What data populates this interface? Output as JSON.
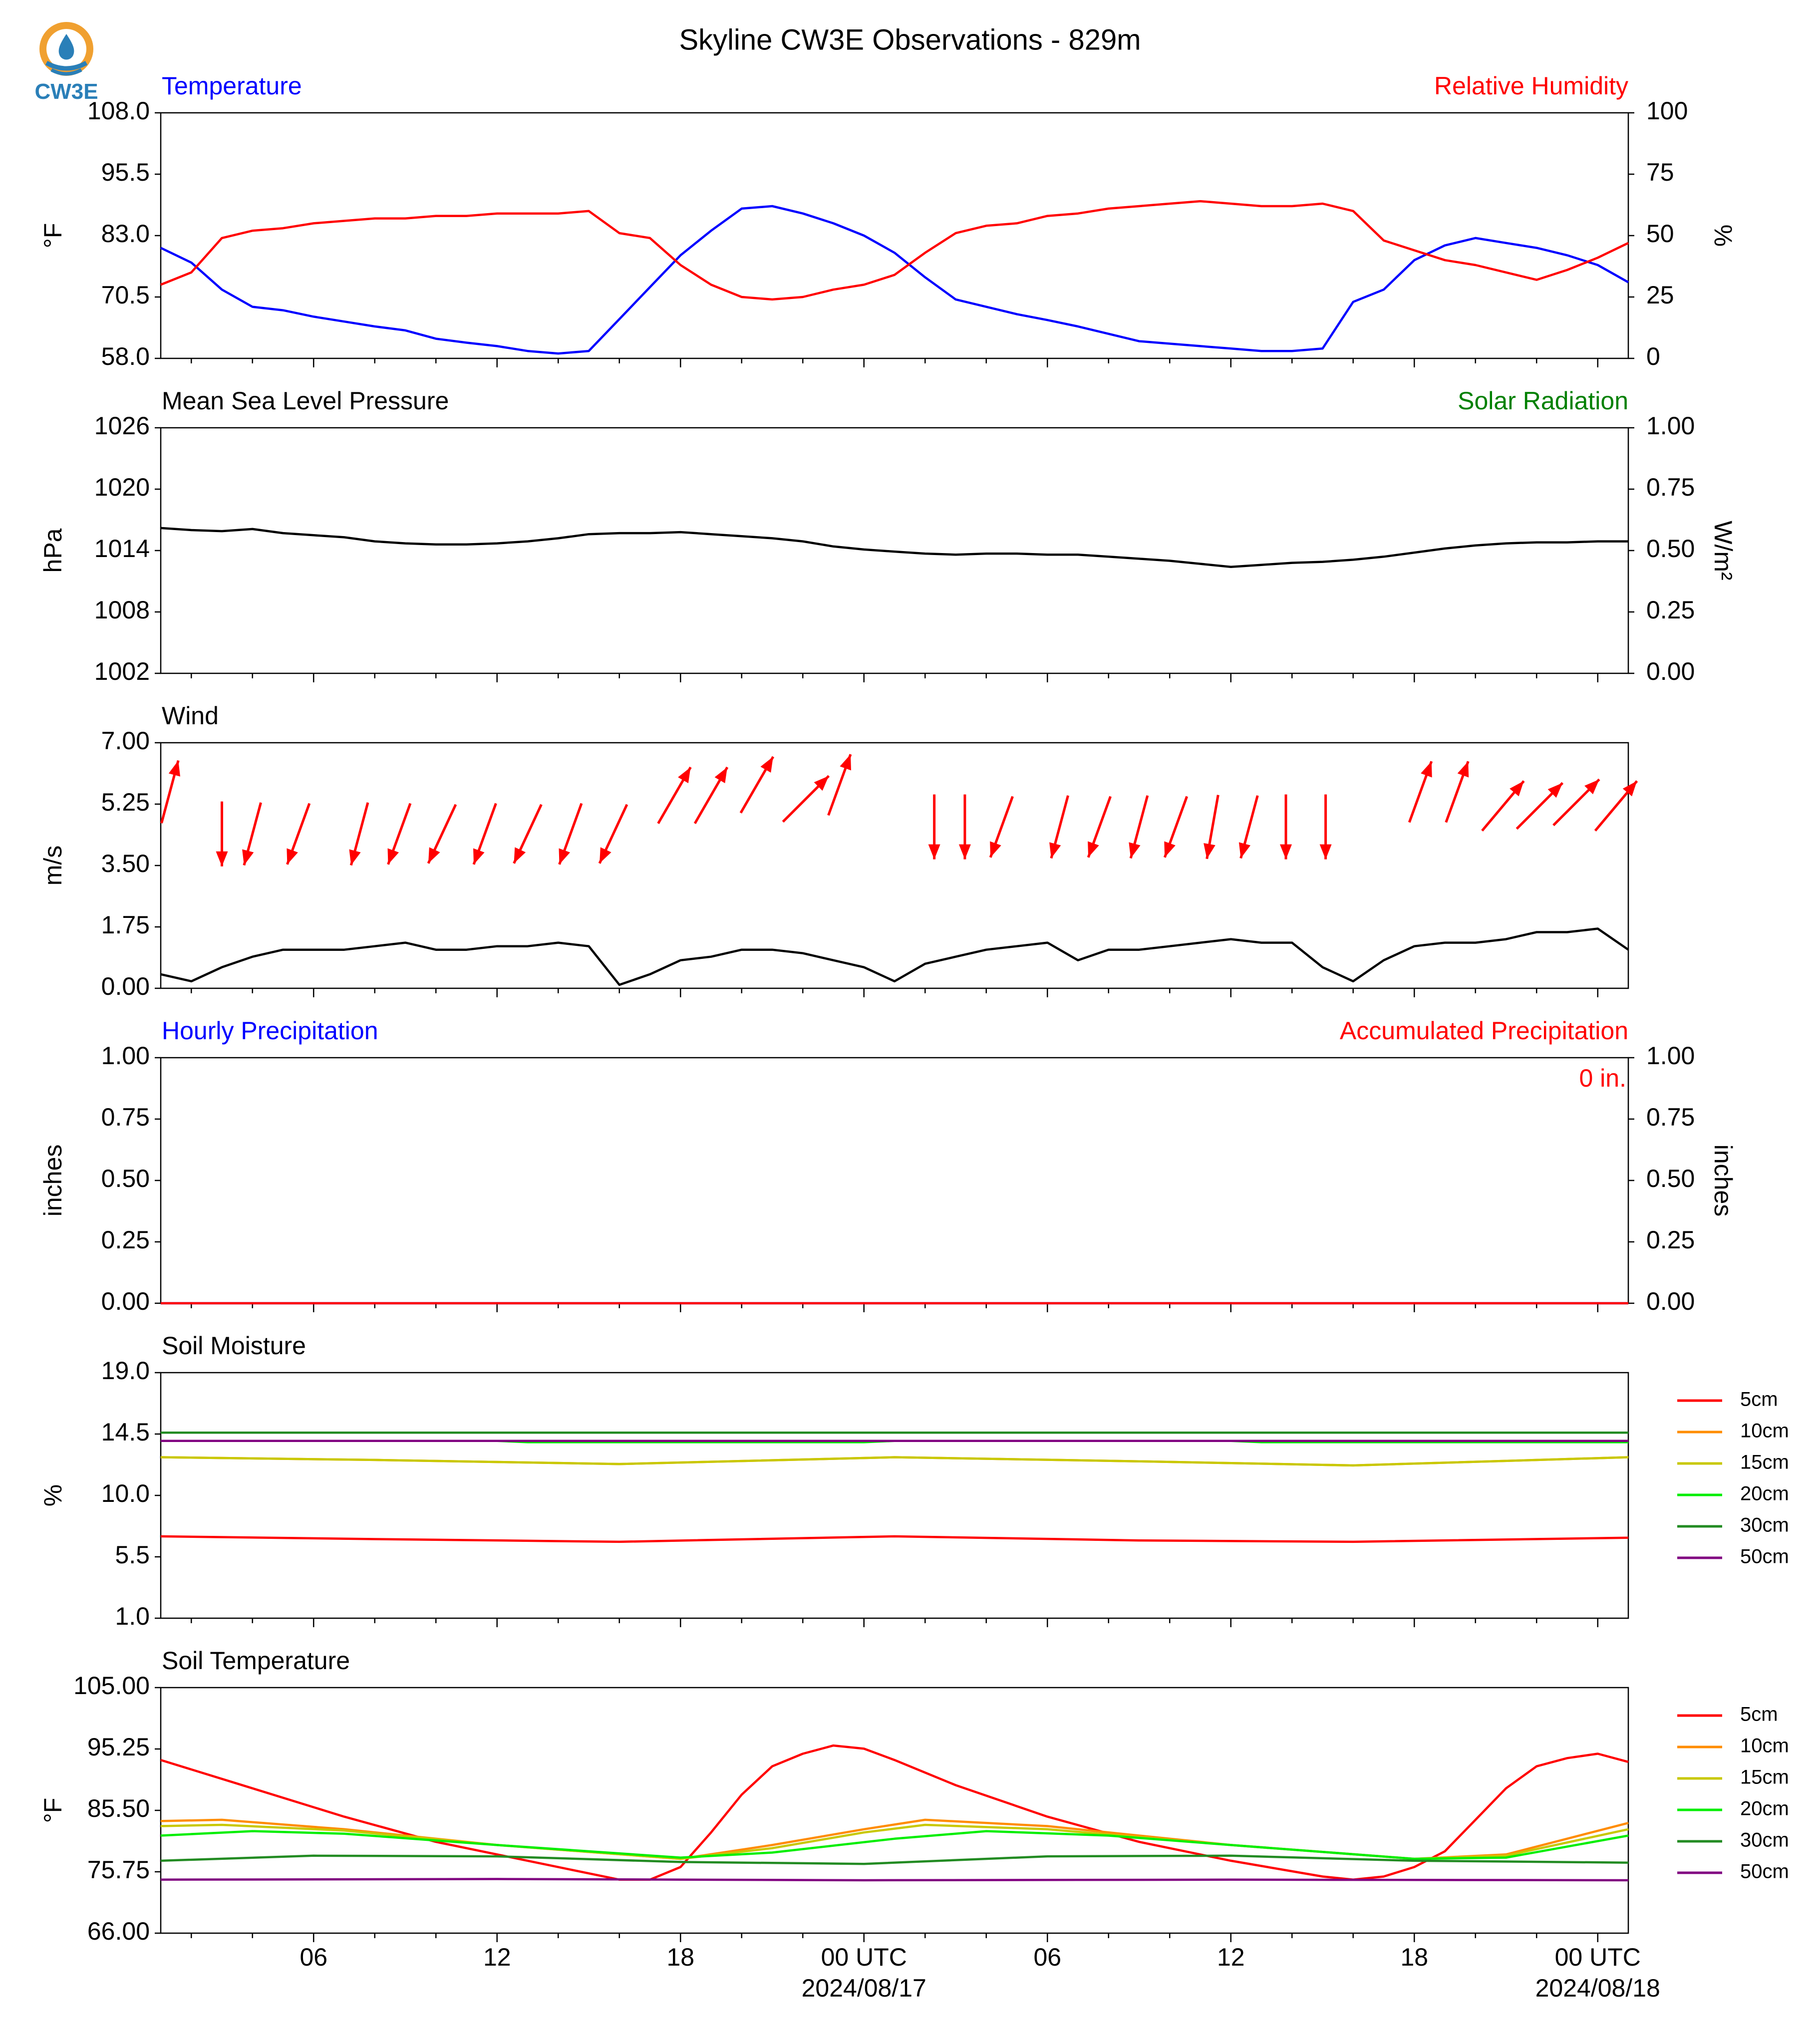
{
  "title": "Skyline CW3E Observations - 829m",
  "logo": {
    "text": "CW3E",
    "icon": "cw3e-logo-icon",
    "ring_color": "#f0a030",
    "drop_color": "#2a7fb8"
  },
  "colors": {
    "blue": "#0000ff",
    "red": "#ff0000",
    "green": "#008000",
    "black": "#000000"
  },
  "x_axis": {
    "tick_labels": [
      "06",
      "12",
      "18",
      "00 UTC",
      "06",
      "12",
      "18",
      "00 UTC"
    ],
    "tick_hours": [
      6,
      12,
      18,
      24,
      30,
      36,
      42,
      48
    ],
    "date_labels": [
      "2024/08/17",
      "2024/08/18"
    ],
    "range_hours": [
      1,
      49
    ]
  },
  "legend": {
    "depths": [
      "5cm",
      "10cm",
      "15cm",
      "20cm",
      "30cm",
      "50cm"
    ],
    "colors": [
      "#ff0000",
      "#ff8c00",
      "#c8c800",
      "#00ee00",
      "#228b22",
      "#800080"
    ]
  },
  "panels": {
    "temperature": {
      "left_title": "Temperature",
      "right_title": "Relative Humidity",
      "ylabel_left": "°F",
      "ylabel_right": "%",
      "left_ticks": [
        "108.0",
        "95.5",
        "83.0",
        "70.5",
        "58.0"
      ],
      "right_ticks": [
        "100",
        "75",
        "50",
        "25",
        "0"
      ]
    },
    "pressure": {
      "left_title": "Mean Sea Level Pressure",
      "right_title": "Solar Radiation",
      "ylabel_left": "hPa",
      "ylabel_right": "W/m²",
      "left_ticks": [
        "1026",
        "1020",
        "1014",
        "1008",
        "1002"
      ],
      "right_ticks": [
        "1.00",
        "0.75",
        "0.50",
        "0.25",
        "0.00"
      ]
    },
    "wind": {
      "left_title": "Wind",
      "ylabel_left": "m/s",
      "left_ticks": [
        "7.00",
        "5.25",
        "3.50",
        "1.75",
        "0.00"
      ]
    },
    "precip": {
      "left_title": "Hourly Precipitation",
      "right_title": "Accumulated Precipitation",
      "ylabel_left": "inches",
      "ylabel_right": "inches",
      "left_ticks": [
        "1.00",
        "0.75",
        "0.50",
        "0.25",
        "0.00"
      ],
      "right_ticks": [
        "1.00",
        "0.75",
        "0.50",
        "0.25",
        "0.00"
      ],
      "accum_label": "0 in."
    },
    "soil_moisture": {
      "left_title": "Soil Moisture",
      "ylabel_left": "%",
      "left_ticks": [
        "19.0",
        "14.5",
        "10.0",
        "5.5",
        "1.0"
      ]
    },
    "soil_temp": {
      "left_title": "Soil Temperature",
      "ylabel_left": "°F",
      "left_ticks": [
        "105.00",
        "95.25",
        "85.50",
        "75.75",
        "66.00"
      ]
    }
  },
  "chart_data": [
    {
      "type": "line",
      "title": "Temperature",
      "ylabel": "°F",
      "ylim": [
        58,
        108
      ],
      "x_unit": "hours since 2024-08-16 00 UTC",
      "series": [
        {
          "name": "Temperature",
          "color": "#0000ff",
          "axis": "left",
          "x": [
            1,
            2,
            3,
            4,
            5,
            6,
            7,
            8,
            9,
            10,
            11,
            12,
            13,
            14,
            15,
            16,
            17,
            18,
            19,
            20,
            21,
            22,
            23,
            24,
            25,
            26,
            27,
            28,
            29,
            30,
            31,
            32,
            33,
            34,
            35,
            36,
            37,
            38,
            39,
            40,
            41,
            42,
            43,
            44,
            45,
            46,
            47,
            48,
            49
          ],
          "y": [
            80.5,
            77.5,
            72.0,
            68.5,
            67.8,
            66.5,
            65.5,
            64.5,
            63.7,
            62.0,
            61.2,
            60.5,
            59.5,
            59.0,
            59.5,
            66.0,
            72.5,
            79.0,
            84.0,
            88.5,
            89.0,
            87.5,
            85.5,
            83.0,
            79.5,
            74.5,
            70.0,
            68.5,
            67.0,
            65.8,
            64.5,
            63.0,
            61.5,
            61.0,
            60.5,
            60.0,
            59.5,
            59.5,
            60.0,
            69.5,
            72.0,
            78.0,
            81.0,
            82.5,
            81.5,
            80.5,
            79.0,
            77.0,
            73.5
          ]
        },
        {
          "name": "Relative Humidity",
          "color": "#ff0000",
          "axis": "right",
          "x": [
            1,
            2,
            3,
            4,
            5,
            6,
            7,
            8,
            9,
            10,
            11,
            12,
            13,
            14,
            15,
            16,
            17,
            18,
            19,
            20,
            21,
            22,
            23,
            24,
            25,
            26,
            27,
            28,
            29,
            30,
            31,
            32,
            33,
            34,
            35,
            36,
            37,
            38,
            39,
            40,
            41,
            42,
            43,
            44,
            45,
            46,
            47,
            48,
            49
          ],
          "y": [
            30,
            35,
            49,
            52,
            53,
            55,
            56,
            57,
            57,
            58,
            58,
            59,
            59,
            59,
            60,
            51,
            49,
            38,
            30,
            25,
            24,
            25,
            28,
            30,
            34,
            43,
            51,
            54,
            55,
            58,
            59,
            61,
            62,
            63,
            64,
            63,
            62,
            62,
            63,
            60,
            48,
            44,
            40,
            38,
            35,
            32,
            36,
            41,
            47
          ]
        }
      ]
    },
    {
      "type": "line",
      "title": "Mean Sea Level Pressure",
      "ylabel": "hPa",
      "ylim": [
        1002,
        1026
      ],
      "x_unit": "hours since 2024-08-16 00 UTC",
      "series": [
        {
          "name": "Mean Sea Level Pressure",
          "color": "#000000",
          "x": [
            1,
            2,
            3,
            4,
            5,
            6,
            7,
            8,
            9,
            10,
            11,
            12,
            13,
            14,
            15,
            16,
            17,
            18,
            19,
            20,
            21,
            22,
            23,
            24,
            25,
            26,
            27,
            28,
            29,
            30,
            31,
            32,
            33,
            34,
            35,
            36,
            37,
            38,
            39,
            40,
            41,
            42,
            43,
            44,
            45,
            46,
            47,
            48,
            49
          ],
          "y": [
            1016.2,
            1016.0,
            1015.9,
            1016.1,
            1015.7,
            1015.5,
            1015.3,
            1014.9,
            1014.7,
            1014.6,
            1014.6,
            1014.7,
            1014.9,
            1015.2,
            1015.6,
            1015.7,
            1015.7,
            1015.8,
            1015.6,
            1015.4,
            1015.2,
            1014.9,
            1014.4,
            1014.1,
            1013.9,
            1013.7,
            1013.6,
            1013.7,
            1013.7,
            1013.6,
            1013.6,
            1013.4,
            1013.2,
            1013.0,
            1012.7,
            1012.4,
            1012.6,
            1012.8,
            1012.9,
            1013.1,
            1013.4,
            1013.8,
            1014.2,
            1014.5,
            1014.7,
            1014.8,
            1014.8,
            1014.9,
            1014.9
          ]
        }
      ]
    },
    {
      "type": "line",
      "title": "Wind",
      "ylabel": "m/s",
      "ylim": [
        0,
        7
      ],
      "x_unit": "hours since 2024-08-16 00 UTC",
      "series": [
        {
          "name": "Wind speed",
          "color": "#000000",
          "x": [
            1,
            2,
            3,
            4,
            5,
            6,
            7,
            8,
            9,
            10,
            11,
            12,
            13,
            14,
            15,
            16,
            17,
            18,
            19,
            20,
            21,
            22,
            23,
            24,
            25,
            26,
            27,
            28,
            29,
            30,
            31,
            32,
            33,
            34,
            35,
            36,
            37,
            38,
            39,
            40,
            41,
            42,
            43,
            44,
            45,
            46,
            47,
            48,
            49
          ],
          "y": [
            0.4,
            0.2,
            0.6,
            0.9,
            1.1,
            1.1,
            1.1,
            1.2,
            1.3,
            1.1,
            1.1,
            1.2,
            1.2,
            1.3,
            1.2,
            0.1,
            0.4,
            0.8,
            0.9,
            1.1,
            1.1,
            1.0,
            0.8,
            0.6,
            0.2,
            0.7,
            0.9,
            1.1,
            1.2,
            1.3,
            0.8,
            1.1,
            1.1,
            1.2,
            1.3,
            1.4,
            1.3,
            1.3,
            0.6,
            0.2,
            0.8,
            1.2,
            1.3,
            1.3,
            1.4,
            1.6,
            1.6,
            1.7,
            1.1
          ]
        },
        {
          "name": "Wind barbs (direction the arrow points, degrees compass)",
          "color": "#ff0000",
          "x": [
            1.3,
            3,
            4,
            5.5,
            7.5,
            8.8,
            10.2,
            11.6,
            13,
            14.4,
            15.8,
            17.8,
            19,
            20.5,
            22.1,
            23.2,
            26.3,
            27.3,
            28.5,
            30.4,
            31.7,
            33.0,
            34.2,
            35.4,
            36.6,
            37.8,
            39.1,
            42.2,
            43.4,
            44.9,
            46.1,
            47.3,
            48.6
          ],
          "y": [
            5.6,
            4.4,
            4.4,
            4.4,
            4.4,
            4.4,
            4.4,
            4.4,
            4.4,
            4.4,
            4.4,
            5.5,
            5.5,
            5.8,
            5.4,
            5.8,
            4.6,
            4.6,
            4.6,
            4.6,
            4.6,
            4.6,
            4.6,
            4.6,
            4.6,
            4.6,
            4.6,
            5.6,
            5.6,
            5.2,
            5.2,
            5.3,
            5.2
          ],
          "direction_deg": [
            15,
            180,
            195,
            200,
            195,
            200,
            205,
            200,
            205,
            200,
            205,
            30,
            30,
            30,
            45,
            20,
            180,
            180,
            200,
            195,
            200,
            195,
            200,
            190,
            195,
            180,
            180,
            20,
            20,
            40,
            45,
            45,
            40
          ]
        }
      ]
    },
    {
      "type": "line",
      "title": "Hourly Precipitation",
      "ylabel": "inches",
      "ylim": [
        0,
        1
      ],
      "x_unit": "hours since 2024-08-16 00 UTC",
      "series": [
        {
          "name": "Hourly Precipitation",
          "color": "#0000ff",
          "x": [
            1,
            49
          ],
          "y": [
            0,
            0
          ]
        },
        {
          "name": "Accumulated Precipitation",
          "color": "#ff0000",
          "x": [
            1,
            49
          ],
          "y": [
            0,
            0
          ]
        }
      ]
    },
    {
      "type": "line",
      "title": "Soil Moisture",
      "ylabel": "%",
      "ylim": [
        1,
        19
      ],
      "x_unit": "hours since 2024-08-16 00 UTC",
      "series": [
        {
          "name": "5cm",
          "color": "#ff0000",
          "x": [
            1,
            8,
            16,
            25,
            33,
            40,
            49
          ],
          "y": [
            7.0,
            6.8,
            6.6,
            7.0,
            6.7,
            6.6,
            6.9
          ]
        },
        {
          "name": "10cm",
          "color": "#ff8c00",
          "x": [
            1,
            8,
            16,
            25,
            33,
            40,
            49
          ],
          "y": [
            12.8,
            12.6,
            12.3,
            12.8,
            12.5,
            12.2,
            12.8
          ]
        },
        {
          "name": "15cm",
          "color": "#c8c800",
          "x": [
            1,
            8,
            16,
            25,
            33,
            40,
            49
          ],
          "y": [
            12.8,
            12.6,
            12.3,
            12.8,
            12.5,
            12.2,
            12.8
          ]
        },
        {
          "name": "20cm",
          "color": "#00ee00",
          "x": [
            1,
            12,
            13,
            24,
            25,
            36,
            37,
            49
          ],
          "y": [
            14.0,
            14.0,
            13.9,
            13.9,
            14.0,
            14.0,
            13.9,
            13.9
          ]
        },
        {
          "name": "30cm",
          "color": "#228b22",
          "x": [
            1,
            49
          ],
          "y": [
            14.6,
            14.6
          ]
        },
        {
          "name": "50cm",
          "color": "#800080",
          "x": [
            1,
            49
          ],
          "y": [
            14.0,
            14.0
          ]
        }
      ]
    },
    {
      "type": "line",
      "title": "Soil Temperature",
      "ylabel": "°F",
      "ylim": [
        66,
        105
      ],
      "x_unit": "hours since 2024-08-16 00 UTC",
      "series": [
        {
          "name": "5cm",
          "color": "#ff0000",
          "x": [
            1,
            4,
            7,
            10,
            13,
            15,
            16,
            17,
            18,
            19,
            20,
            21,
            22,
            23,
            24,
            25,
            27,
            30,
            33,
            36,
            39,
            40,
            41,
            42,
            43,
            44,
            45,
            46,
            47,
            48,
            49
          ],
          "y": [
            93.5,
            89.0,
            84.5,
            80.5,
            77.5,
            75.5,
            74.5,
            74.5,
            76.5,
            82.0,
            88.0,
            92.5,
            94.5,
            95.8,
            95.3,
            93.5,
            89.5,
            84.5,
            80.5,
            77.5,
            75.0,
            74.5,
            75.0,
            76.5,
            79.0,
            84.0,
            89.0,
            92.5,
            93.8,
            94.5,
            93.2
          ]
        },
        {
          "name": "10cm",
          "color": "#ff8c00",
          "x": [
            1,
            3,
            7,
            12,
            18,
            21,
            24,
            26,
            30,
            36,
            42,
            45,
            49
          ],
          "y": [
            83.8,
            84.0,
            82.5,
            80.0,
            77.8,
            80.0,
            82.5,
            84.0,
            83.0,
            80.0,
            77.8,
            78.5,
            83.5
          ]
        },
        {
          "name": "15cm",
          "color": "#c8c800",
          "x": [
            1,
            3,
            7,
            12,
            18,
            21,
            24,
            26,
            30,
            36,
            42,
            45,
            49
          ],
          "y": [
            83.0,
            83.2,
            82.3,
            80.0,
            77.8,
            79.5,
            82.0,
            83.2,
            82.5,
            80.0,
            77.8,
            78.3,
            82.5
          ]
        },
        {
          "name": "20cm",
          "color": "#00ee00",
          "x": [
            1,
            4,
            7,
            12,
            18,
            21,
            25,
            28,
            32,
            36,
            42,
            45,
            49
          ],
          "y": [
            81.5,
            82.2,
            81.8,
            80.0,
            78.0,
            78.8,
            81.0,
            82.2,
            81.5,
            80.0,
            77.8,
            78.0,
            81.5
          ]
        },
        {
          "name": "30cm",
          "color": "#228b22",
          "x": [
            1,
            6,
            12,
            18,
            24,
            30,
            36,
            42,
            49
          ],
          "y": [
            77.5,
            78.3,
            78.2,
            77.3,
            77.0,
            78.2,
            78.3,
            77.5,
            77.2
          ]
        },
        {
          "name": "50cm",
          "color": "#800080",
          "x": [
            1,
            12,
            24,
            36,
            49
          ],
          "y": [
            74.5,
            74.6,
            74.4,
            74.5,
            74.4
          ]
        }
      ]
    }
  ]
}
